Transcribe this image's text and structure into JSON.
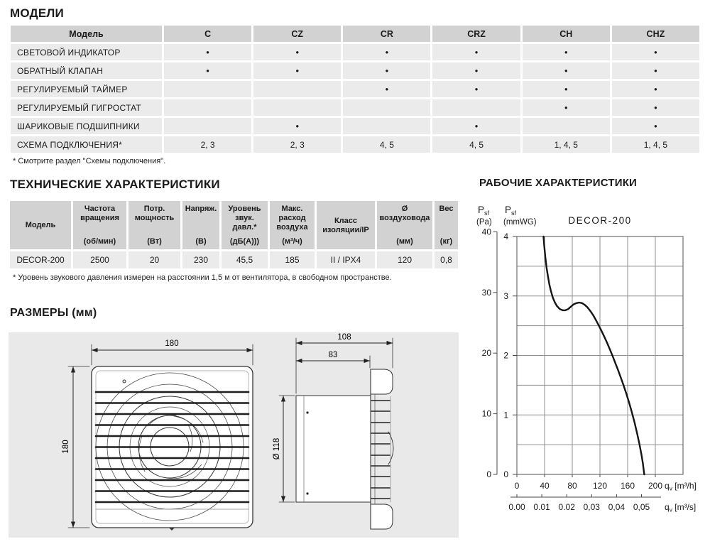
{
  "palette": {
    "table_header_bg": "#d2d2d2",
    "table_row_bg": "#ebebeb",
    "panel_bg": "#e9e9e9",
    "grid_color": "#8f8f8f",
    "curve_color": "#141414",
    "text_color": "#1a1a1a"
  },
  "models": {
    "heading": "МОДЕЛИ",
    "columns": [
      "Модель",
      "C",
      "CZ",
      "CR",
      "CRZ",
      "CH",
      "CHZ"
    ],
    "rows": [
      {
        "label": "СВЕТОВОЙ ИНДИКАТОР",
        "values": [
          "●",
          "●",
          "●",
          "●",
          "●",
          "●"
        ]
      },
      {
        "label": "ОБРАТНЫЙ КЛАПАН",
        "values": [
          "●",
          "●",
          "●",
          "●",
          "●",
          "●"
        ]
      },
      {
        "label": "РЕГУЛИРУЕМЫЙ ТАЙМЕР",
        "values": [
          "",
          "",
          "●",
          "●",
          "●",
          "●"
        ]
      },
      {
        "label": "РЕГУЛИРУЕМЫЙ ГИГРОСТАТ",
        "values": [
          "",
          "",
          "",
          "",
          "●",
          "●"
        ]
      },
      {
        "label": "ШАРИКОВЫЕ ПОДШИПНИКИ",
        "values": [
          "",
          "●",
          "",
          "●",
          "",
          "●"
        ]
      },
      {
        "label": "СХЕМА ПОДКЛЮЧЕНИЯ*",
        "values": [
          "2, 3",
          "2, 3",
          "4, 5",
          "4, 5",
          "1, 4, 5",
          "1, 4, 5"
        ]
      }
    ],
    "footnote": "* Смотрите раздел \"Схемы подключения\"."
  },
  "tech": {
    "heading": "ТЕХНИЧЕСКИЕ ХАРАКТЕРИСТИКИ",
    "columns": [
      {
        "name": "Модель",
        "unit": ""
      },
      {
        "name": "Частота вращения",
        "unit": "(об/мин)"
      },
      {
        "name": "Потр. мощность",
        "unit": "(Вт)"
      },
      {
        "name": "Напряж.",
        "unit": "(В)"
      },
      {
        "name": "Уровень звук. давл.*",
        "unit": "(дБ(А)))"
      },
      {
        "name": "Макс. расход воздуха",
        "unit": "(м³/ч)"
      },
      {
        "name": "Класс изоляции/IP",
        "unit": ""
      },
      {
        "name": "Ø воздуховода",
        "unit": "(мм)"
      },
      {
        "name": "Вес",
        "unit": "(кг)"
      }
    ],
    "row": [
      "DECOR-200",
      "2500",
      "20",
      "230",
      "45,5",
      "185",
      "II / IPX4",
      "120",
      "0,8"
    ],
    "footnote": "* Уровень звукового давления измерен на расстоянии 1,5 м от вентилятора, в свободном пространстве."
  },
  "dimensions": {
    "heading": "РАЗМЕРЫ (мм)",
    "front_width": "180",
    "front_height": "180",
    "total_depth": "108",
    "duct_depth": "83",
    "duct_diameter": "Ø 118"
  },
  "performance": {
    "heading": "РАБОЧИЕ ХАРАКТЕРИСТИКИ"
  },
  "chart_data": {
    "type": "line",
    "title": "DECOR-200",
    "y_axis_pa": {
      "quantity": "P",
      "sub": "sf",
      "unit": "(Pa)",
      "ticks": [
        40,
        30,
        20,
        10,
        0
      ],
      "pa_per_mmwg": 9.80665
    },
    "y_axis_mmwg": {
      "quantity": "P",
      "sub": "sf",
      "unit": "(mmWG)",
      "ticks": [
        4,
        3,
        2,
        1,
        0
      ],
      "range": [
        0,
        4
      ]
    },
    "x_axis_m3h": {
      "quantity": "q",
      "sub": "v",
      "unit": "[m³/h]",
      "ticks": [
        0,
        40,
        80,
        120,
        160,
        200
      ],
      "range": [
        0,
        240
      ]
    },
    "x_axis_m3s": {
      "quantity": "q",
      "sub": "v",
      "unit": "[m³/s]",
      "tick_labels": [
        "0.00",
        "0.01",
        "0.02",
        "0,03",
        "0,04",
        "0,05"
      ],
      "tick_values_m3h": [
        0,
        36,
        72,
        108,
        144,
        180
      ]
    },
    "grid": {
      "x_step_m3h": 40,
      "y_step_mmwg": 0.5,
      "grid_on": true
    },
    "series": [
      {
        "name": "DECOR-200",
        "points_m3h_mmwg": [
          [
            38.5,
            4.0
          ],
          [
            39.5,
            3.85
          ],
          [
            41,
            3.66
          ],
          [
            43,
            3.47
          ],
          [
            45,
            3.32
          ],
          [
            47,
            3.19
          ],
          [
            49,
            3.09
          ],
          [
            52,
            2.97
          ],
          [
            55,
            2.89
          ],
          [
            58,
            2.83
          ],
          [
            62,
            2.78
          ],
          [
            66,
            2.76
          ],
          [
            70,
            2.76
          ],
          [
            74,
            2.78
          ],
          [
            78,
            2.82
          ],
          [
            82,
            2.86
          ],
          [
            86,
            2.88
          ],
          [
            90,
            2.89
          ],
          [
            94,
            2.88
          ],
          [
            98,
            2.85
          ],
          [
            102,
            2.81
          ],
          [
            106,
            2.75
          ],
          [
            110,
            2.68
          ],
          [
            114,
            2.6
          ],
          [
            118,
            2.51
          ],
          [
            122,
            2.42
          ],
          [
            126,
            2.32
          ],
          [
            130,
            2.22
          ],
          [
            134,
            2.11
          ],
          [
            138,
            2.0
          ],
          [
            142,
            1.88
          ],
          [
            146,
            1.76
          ],
          [
            150,
            1.63
          ],
          [
            154,
            1.5
          ],
          [
            158,
            1.36
          ],
          [
            162,
            1.21
          ],
          [
            166,
            1.05
          ],
          [
            170,
            0.87
          ],
          [
            174,
            0.67
          ],
          [
            177,
            0.51
          ],
          [
            180,
            0.33
          ],
          [
            182,
            0.19
          ],
          [
            184,
            0.0
          ]
        ]
      }
    ]
  }
}
